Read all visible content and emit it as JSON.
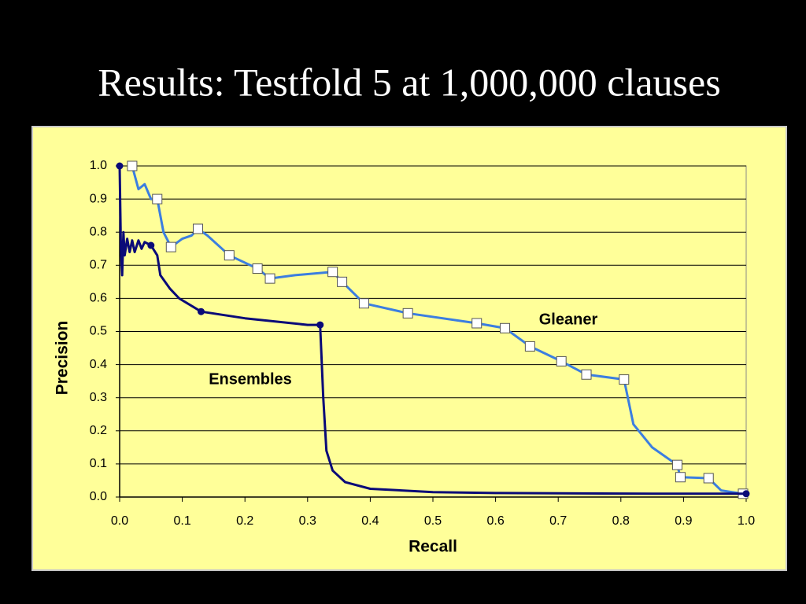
{
  "title": "Results: Testfold 5 at 1,000,000 clauses",
  "chart_data": {
    "type": "line",
    "x_label": "Recall",
    "y_label": "Precision",
    "xlim": [
      0,
      1
    ],
    "ylim": [
      0,
      1
    ],
    "xticks": [
      {
        "value": 0,
        "label": "0.0"
      },
      0.1,
      0.2,
      0.3,
      0.4,
      0.5,
      0.6,
      0.7,
      0.8,
      0.9,
      {
        "value": 1,
        "label": "1.0"
      }
    ],
    "yticks": [
      {
        "value": 0,
        "label": "0.0"
      },
      0.1,
      0.2,
      0.3,
      0.4,
      0.5,
      0.6,
      0.7,
      0.8,
      0.9,
      {
        "value": 1,
        "label": "1.0"
      }
    ],
    "grid": true,
    "series": [
      {
        "name": "Gleaner",
        "color": "#3c7ee0",
        "marker": "square",
        "points": {
          "x": [
            0.02,
            0.03,
            0.04,
            0.05,
            0.06,
            0.07,
            0.082,
            0.1,
            0.115,
            0.125,
            0.14,
            0.175,
            0.22,
            0.24,
            0.28,
            0.34,
            0.355,
            0.39,
            0.46,
            0.57,
            0.615,
            0.655,
            0.705,
            0.745,
            0.805,
            0.82,
            0.85,
            0.89,
            0.895,
            0.94,
            0.96,
            0.995
          ],
          "values": [
            1.0,
            0.93,
            0.945,
            0.9,
            0.9,
            0.8,
            0.755,
            0.78,
            0.79,
            0.81,
            0.79,
            0.73,
            0.69,
            0.66,
            0.67,
            0.68,
            0.65,
            0.585,
            0.555,
            0.525,
            0.51,
            0.455,
            0.41,
            0.37,
            0.355,
            0.22,
            0.15,
            0.097,
            0.06,
            0.057,
            0.02,
            0.01
          ]
        },
        "markers": {
          "x": [
            0.02,
            0.06,
            0.082,
            0.125,
            0.175,
            0.22,
            0.24,
            0.34,
            0.355,
            0.39,
            0.46,
            0.57,
            0.615,
            0.655,
            0.705,
            0.745,
            0.805,
            0.89,
            0.895,
            0.94,
            0.995
          ],
          "values": [
            1.0,
            0.9,
            0.755,
            0.81,
            0.73,
            0.69,
            0.66,
            0.68,
            0.65,
            0.585,
            0.555,
            0.525,
            0.51,
            0.455,
            0.41,
            0.37,
            0.355,
            0.097,
            0.06,
            0.057,
            0.01
          ]
        }
      },
      {
        "name": "Ensembles",
        "color": "#0a0a78",
        "marker": "circle",
        "points": {
          "x": [
            0.0,
            0.002,
            0.004,
            0.006,
            0.008,
            0.012,
            0.016,
            0.02,
            0.024,
            0.03,
            0.035,
            0.04,
            0.05,
            0.06,
            0.065,
            0.08,
            0.095,
            0.13,
            0.2,
            0.3,
            0.32,
            0.325,
            0.33,
            0.34,
            0.36,
            0.4,
            0.5,
            0.6,
            0.85,
            1.0
          ],
          "values": [
            1.0,
            0.75,
            0.67,
            0.8,
            0.73,
            0.78,
            0.74,
            0.775,
            0.74,
            0.775,
            0.75,
            0.77,
            0.76,
            0.73,
            0.67,
            0.63,
            0.6,
            0.56,
            0.54,
            0.52,
            0.52,
            0.3,
            0.14,
            0.08,
            0.045,
            0.025,
            0.015,
            0.012,
            0.01,
            0.01
          ]
        },
        "markers": {
          "x": [
            0.0,
            0.05,
            0.13,
            0.32,
            1.0
          ],
          "values": [
            1.0,
            0.76,
            0.56,
            0.52,
            0.01
          ]
        }
      }
    ]
  }
}
